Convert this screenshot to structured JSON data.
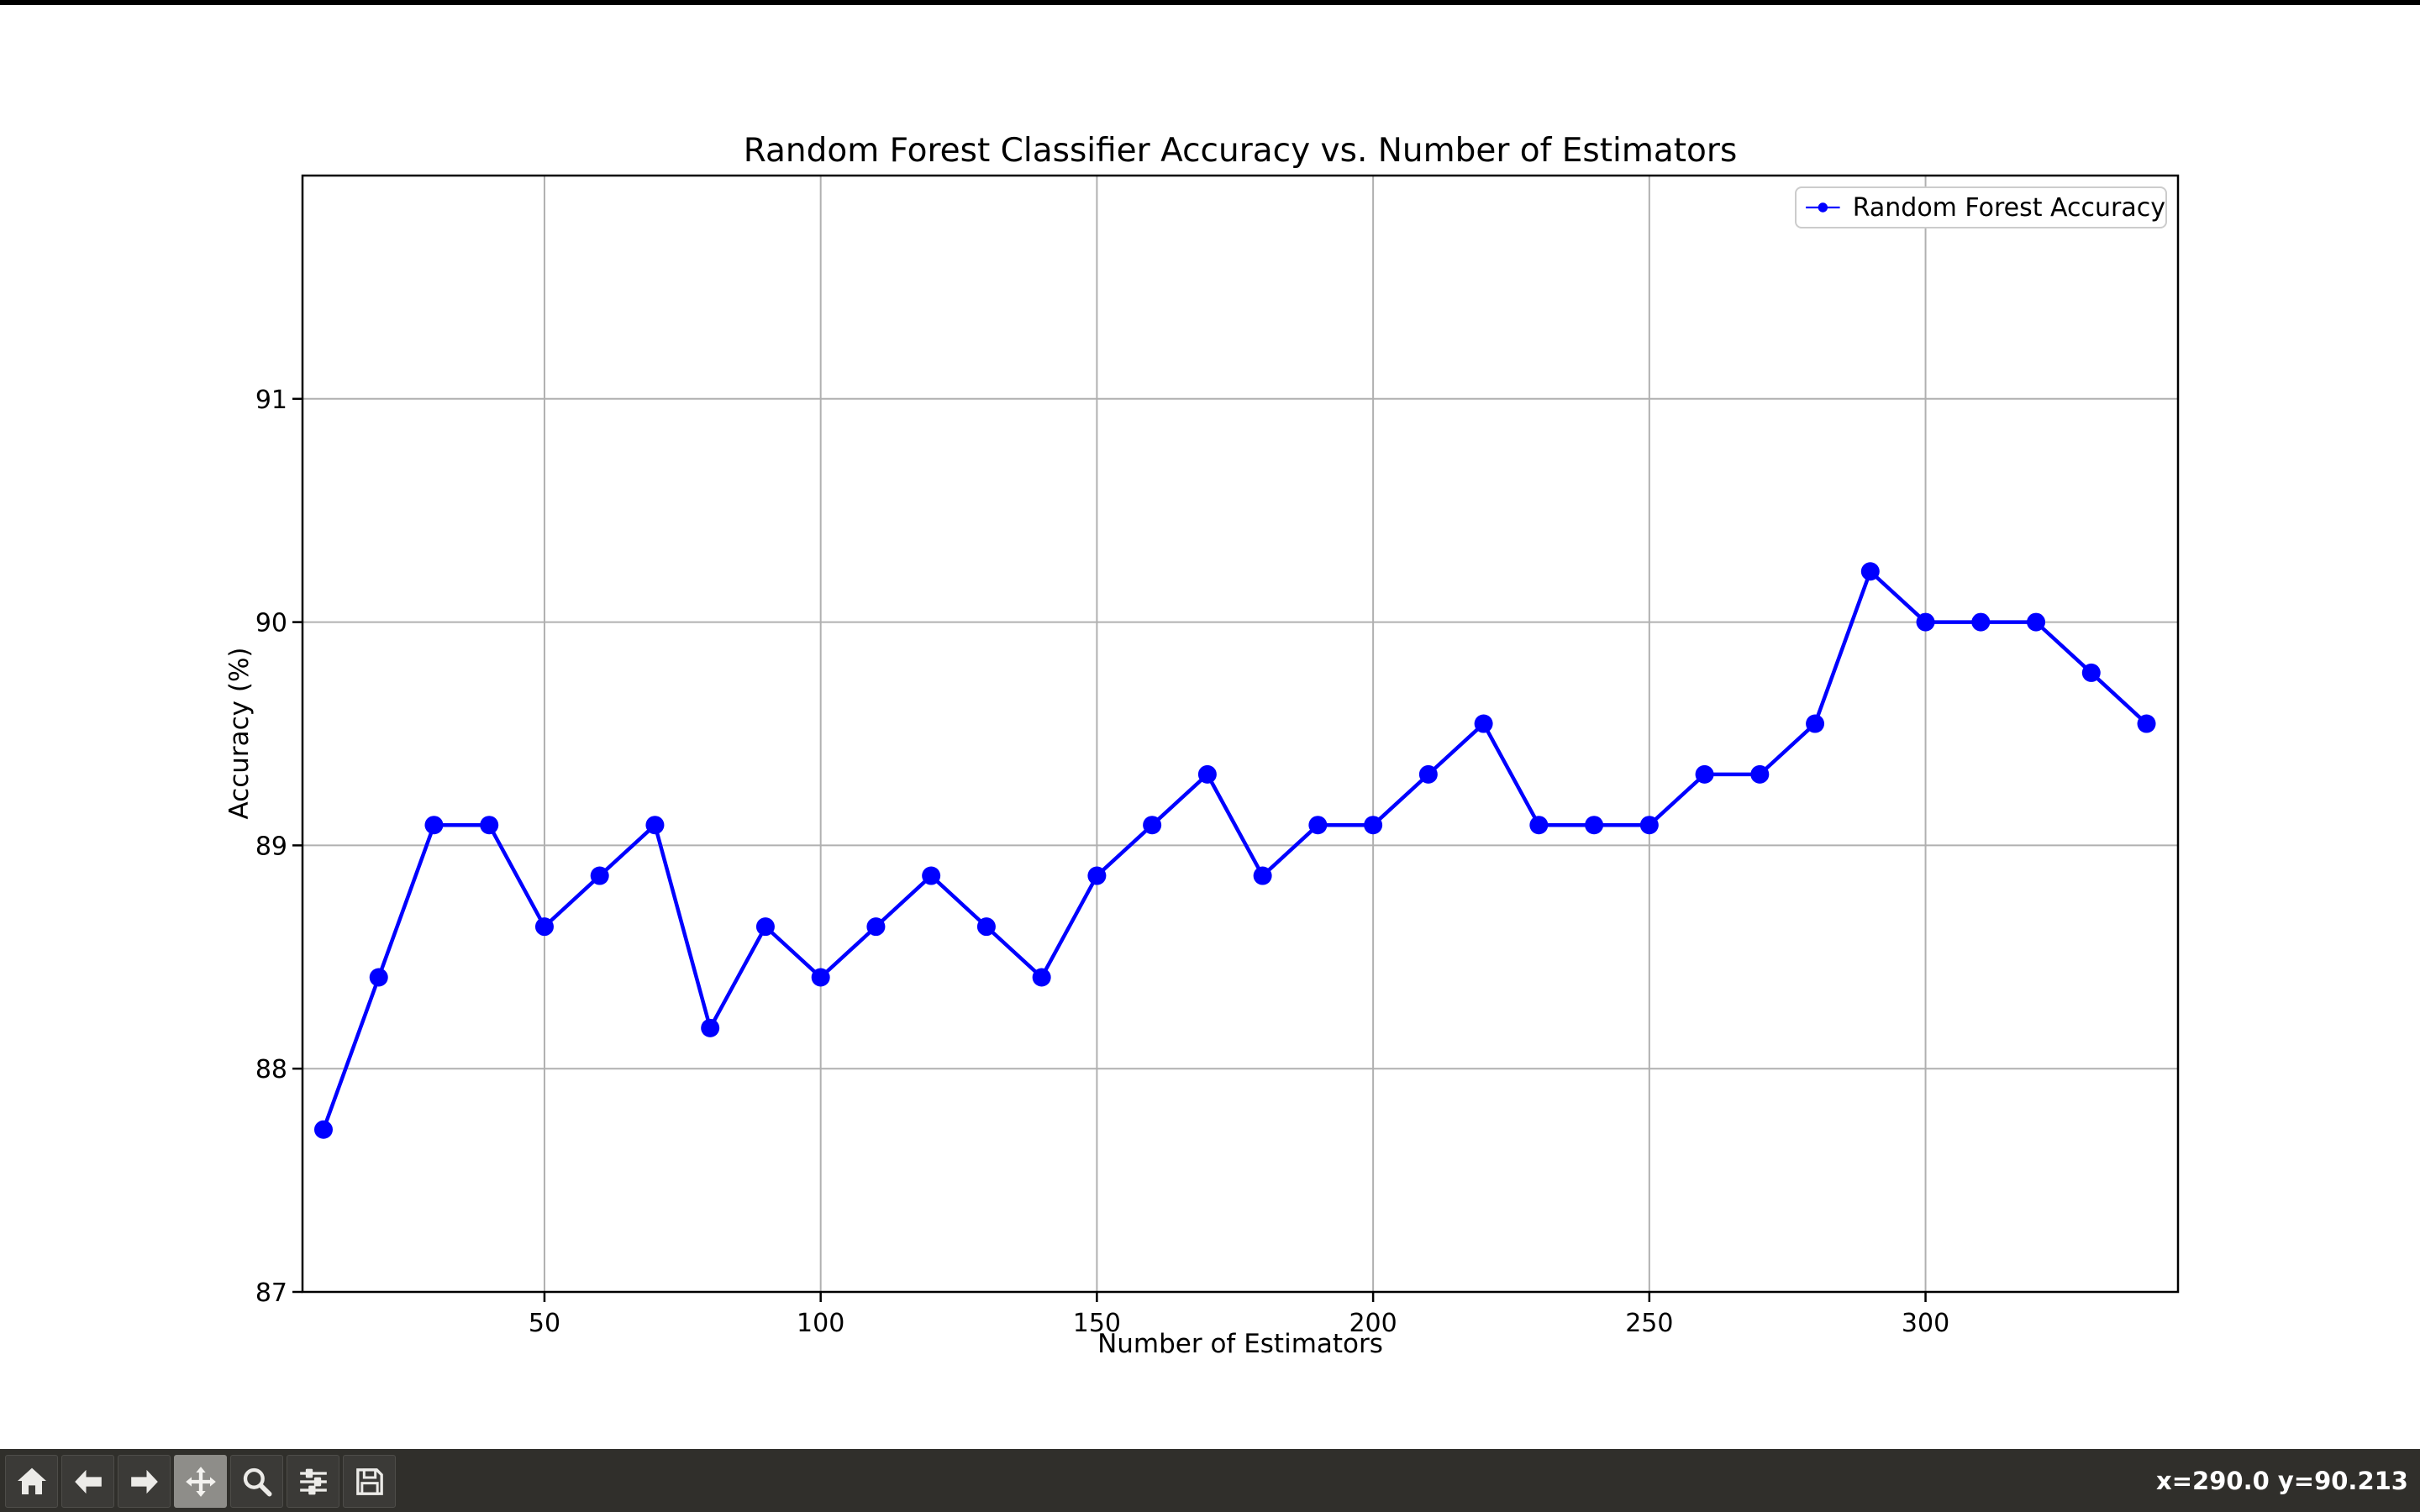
{
  "chart_data": {
    "type": "line",
    "title": "Random Forest Classifier Accuracy vs. Number of Estimators",
    "xlabel": "Number of Estimators",
    "ylabel": "Accuracy (%)",
    "grid": true,
    "grid_color": "#b0b0b0",
    "legend": {
      "label": "Random Forest Accuracy",
      "location": "upper right"
    },
    "xlim": [
      6.2,
      345.7
    ],
    "ylim": [
      87,
      92
    ],
    "x_ticks": [
      50,
      100,
      150,
      200,
      250,
      300
    ],
    "y_ticks": [
      87,
      88,
      89,
      90,
      91
    ],
    "series": [
      {
        "name": "Random Forest Accuracy",
        "color": "#0000FF",
        "marker": "circle",
        "x": [
          10,
          20,
          30,
          40,
          50,
          60,
          70,
          80,
          90,
          100,
          110,
          120,
          130,
          140,
          150,
          160,
          170,
          180,
          190,
          200,
          210,
          220,
          230,
          240,
          250,
          260,
          270,
          280,
          290,
          300,
          310,
          320,
          330,
          340
        ],
        "y": [
          87.727,
          88.409,
          89.091,
          89.091,
          88.636,
          88.864,
          89.091,
          88.182,
          88.636,
          88.409,
          88.636,
          88.864,
          88.636,
          88.409,
          88.864,
          89.091,
          89.318,
          88.864,
          89.091,
          89.091,
          89.318,
          89.545,
          89.091,
          89.091,
          89.091,
          89.318,
          89.318,
          89.545,
          90.227,
          90.0,
          90.0,
          90.0,
          89.773,
          89.545
        ]
      }
    ]
  },
  "toolbar": {
    "status_text": "x=290.0 y=90.213",
    "colors": {
      "background": "#302F2B",
      "button": "#3B3A37",
      "button_active": "#8E8D89",
      "icon": "#ECEBE8"
    },
    "buttons": [
      {
        "name": "home",
        "active": false
      },
      {
        "name": "back",
        "active": false
      },
      {
        "name": "forward",
        "active": false
      },
      {
        "name": "pan",
        "active": true
      },
      {
        "name": "zoom",
        "active": false
      },
      {
        "name": "subplots",
        "active": false
      },
      {
        "name": "save",
        "active": false
      }
    ]
  }
}
